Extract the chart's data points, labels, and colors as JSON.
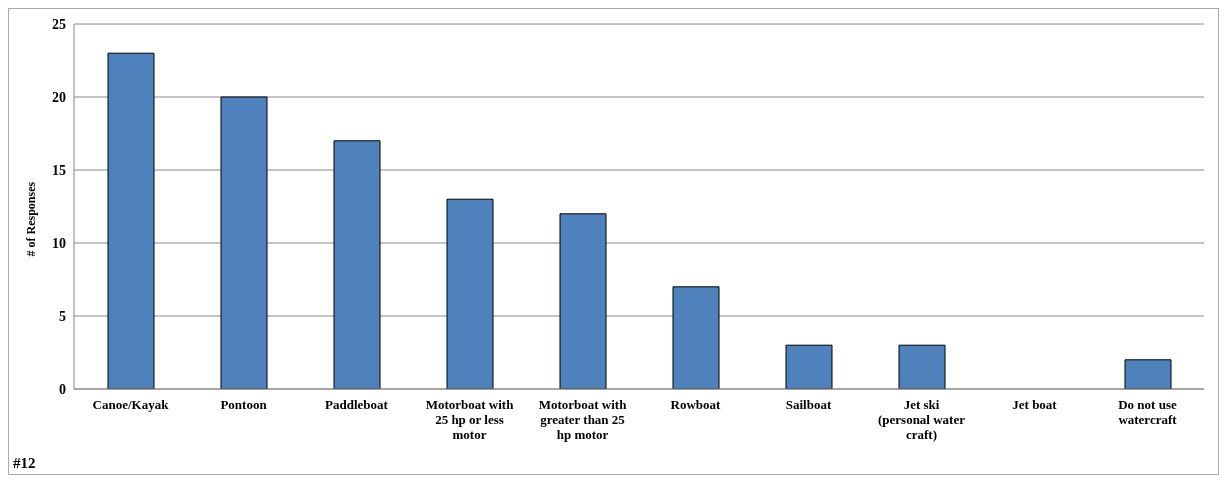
{
  "chart_data": {
    "type": "bar",
    "ylabel": "# of Responses",
    "categories": [
      "Canoe/Kayak",
      "Pontoon",
      "Paddleboat",
      "Motorboat with 25 hp or less motor",
      "Motorboat with greater than 25 hp motor",
      "Rowboat",
      "Sailboat",
      "Jet ski (personal water craft)",
      "Jet boat",
      "Do not use watercraft"
    ],
    "values": [
      23,
      20,
      17,
      13,
      12,
      7,
      3,
      3,
      0,
      2
    ],
    "color": "#4f81bd",
    "ylim": [
      0,
      25
    ],
    "yticks": [
      0,
      5,
      10,
      15,
      20,
      25
    ],
    "grid": "y",
    "annotations": [
      "#12"
    ]
  }
}
